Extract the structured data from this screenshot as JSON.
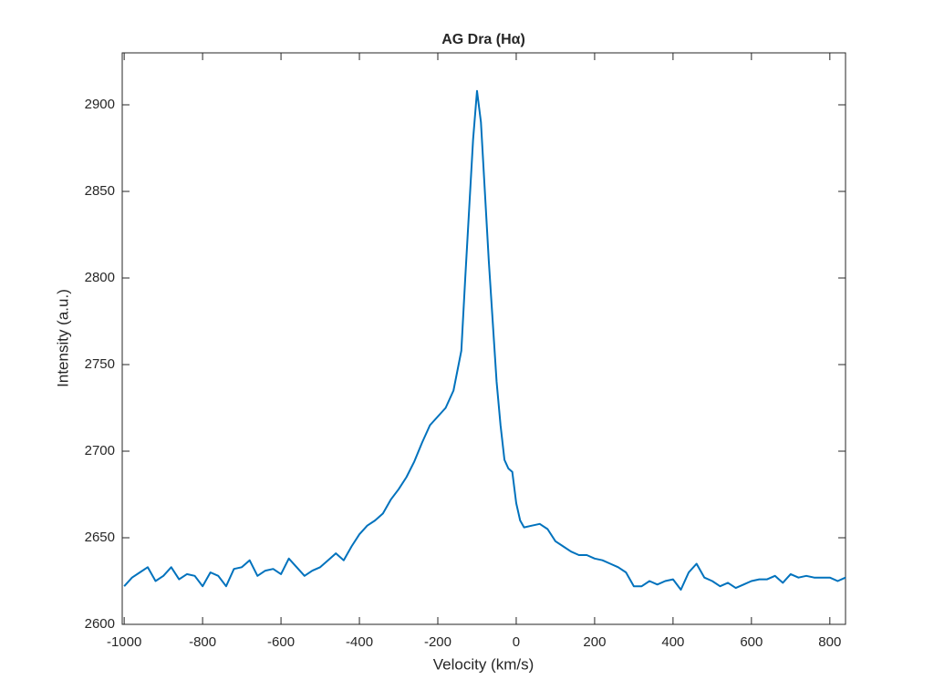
{
  "chart_data": {
    "type": "line",
    "title": "AG Dra (Hα)",
    "x_label": "Velocity (km/s)",
    "y_label": "Intensity (a.u.)",
    "x": [
      -1000,
      -980,
      -960,
      -940,
      -920,
      -900,
      -880,
      -860,
      -840,
      -820,
      -800,
      -780,
      -760,
      -740,
      -720,
      -700,
      -680,
      -660,
      -640,
      -620,
      -600,
      -580,
      -560,
      -540,
      -520,
      -500,
      -480,
      -460,
      -440,
      -420,
      -400,
      -380,
      -360,
      -340,
      -320,
      -300,
      -280,
      -260,
      -240,
      -220,
      -200,
      -180,
      -160,
      -140,
      -130,
      -120,
      -110,
      -100,
      -90,
      -80,
      -70,
      -60,
      -50,
      -40,
      -30,
      -20,
      -10,
      0,
      10,
      20,
      40,
      60,
      80,
      100,
      120,
      140,
      160,
      180,
      200,
      220,
      240,
      260,
      280,
      300,
      320,
      340,
      360,
      380,
      400,
      420,
      440,
      460,
      480,
      500,
      520,
      540,
      560,
      580,
      600,
      620,
      640,
      660,
      680,
      700,
      720,
      740,
      760,
      780,
      800,
      820,
      840
    ],
    "series": [
      {
        "name": "AG Dra",
        "color": "#0072bd",
        "values": [
          2622,
          2627,
          2630,
          2633,
          2625,
          2628,
          2633,
          2626,
          2629,
          2628,
          2622,
          2630,
          2628,
          2622,
          2632,
          2633,
          2637,
          2628,
          2631,
          2632,
          2629,
          2638,
          2633,
          2628,
          2631,
          2633,
          2637,
          2641,
          2637,
          2645,
          2652,
          2657,
          2660,
          2664,
          2672,
          2678,
          2685,
          2694,
          2705,
          2715,
          2720,
          2725,
          2735,
          2758,
          2800,
          2840,
          2880,
          2908,
          2890,
          2850,
          2810,
          2775,
          2740,
          2715,
          2695,
          2690,
          2688,
          2670,
          2660,
          2656,
          2657,
          2658,
          2655,
          2648,
          2645,
          2642,
          2640,
          2640,
          2638,
          2637,
          2635,
          2633,
          2630,
          2622,
          2622,
          2625,
          2623,
          2625,
          2626,
          2620,
          2630,
          2635,
          2627,
          2625,
          2622,
          2624,
          2621,
          2623,
          2625,
          2626,
          2626,
          2628,
          2624,
          2629,
          2627,
          2628,
          2627,
          2627,
          2627,
          2625,
          2627
        ]
      }
    ],
    "xlim": [
      -1005,
      840
    ],
    "ylim": [
      2600,
      2930
    ],
    "xticks": [
      -1000,
      -800,
      -600,
      -400,
      -200,
      0,
      200,
      400,
      600,
      800
    ],
    "yticks": [
      2600,
      2650,
      2700,
      2750,
      2800,
      2850,
      2900
    ]
  }
}
